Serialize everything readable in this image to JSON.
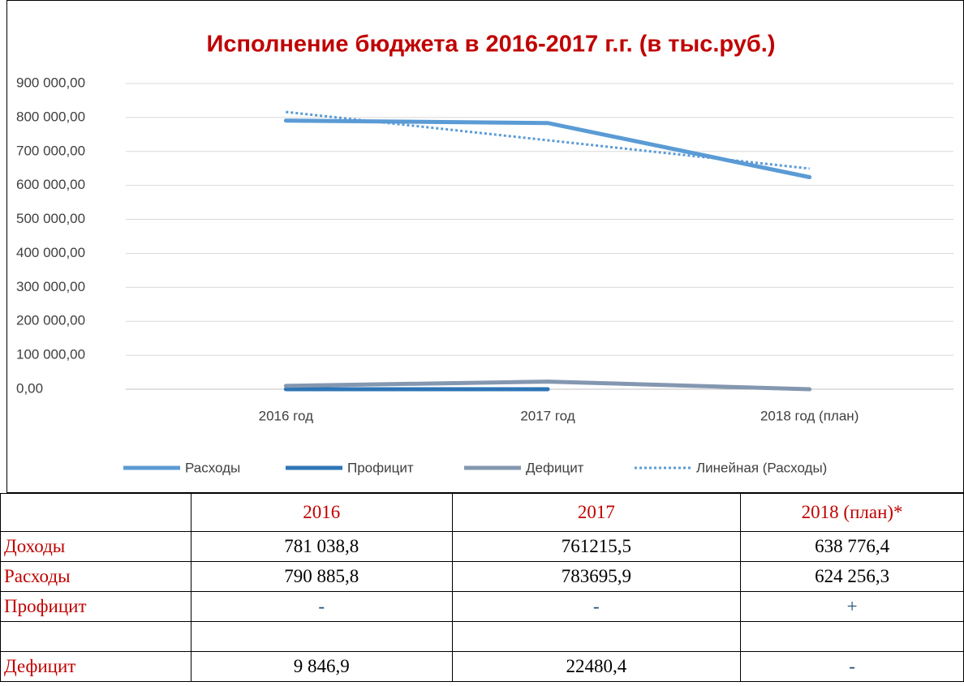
{
  "chart_data": {
    "type": "line",
    "title": "Исполнение бюджета в 2016-2017 г.г. (в тыс.руб.)",
    "categories": [
      "2016 год",
      "2017 год",
      "2018 год (план)"
    ],
    "series": [
      {
        "name": "Расходы",
        "color": "#5b9bd5",
        "values": [
          790885.8,
          783695.9,
          624256.3
        ]
      },
      {
        "name": "Профицит",
        "color": "#2e75b6",
        "values": [
          0,
          0,
          null
        ]
      },
      {
        "name": "Дефицит",
        "color": "#8497b0",
        "values": [
          9846.9,
          22480.4,
          0
        ]
      },
      {
        "name": "Линейная (Расходы)",
        "color": "#5b9bd5",
        "dashed": true,
        "values": [
          816261.4,
          732946.0,
          649631.3
        ]
      }
    ],
    "ylim": [
      0,
      900000
    ],
    "yticks": [
      {
        "value": 0,
        "label": "0,00"
      },
      {
        "value": 100000,
        "label": "100 000,00"
      },
      {
        "value": 200000,
        "label": "200 000,00"
      },
      {
        "value": 300000,
        "label": "300 000,00"
      },
      {
        "value": 400000,
        "label": "400 000,00"
      },
      {
        "value": 500000,
        "label": "500 000,00"
      },
      {
        "value": 600000,
        "label": "600 000,00"
      },
      {
        "value": 700000,
        "label": "700 000,00"
      },
      {
        "value": 800000,
        "label": "800 000,00"
      },
      {
        "value": 900000,
        "label": "900 000,00"
      }
    ],
    "grid": true,
    "legend": "bottom"
  },
  "table": {
    "header": [
      "2016",
      "2017",
      "2018 (план)*"
    ],
    "rows": [
      {
        "label": "Доходы",
        "cells": [
          "781 038,8",
          "761215,5",
          "638 776,4"
        ]
      },
      {
        "label": "Расходы",
        "cells": [
          "790 885,8",
          "783695,9",
          "624 256,3"
        ]
      },
      {
        "label": "Профицит",
        "cells": [
          "-",
          "-",
          "+"
        ]
      },
      {
        "label": "Дефицит",
        "cells": [
          "9 846,9",
          "22480,4",
          "-"
        ]
      }
    ]
  }
}
